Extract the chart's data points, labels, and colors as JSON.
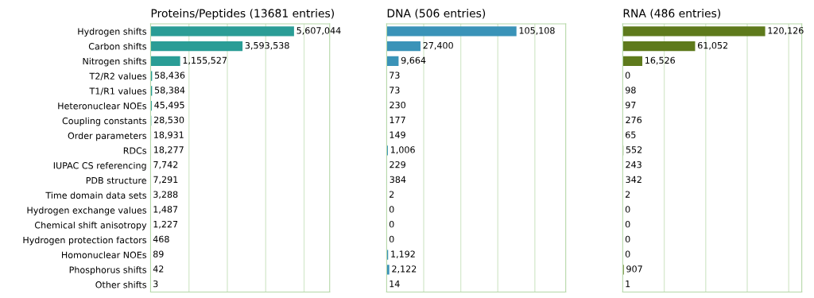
{
  "chart_data": [
    {
      "type": "bar",
      "orientation": "horizontal",
      "title": "Proteins/Peptides (13681 entries)",
      "categories": [
        "Hydrogen shifts",
        "Carbon shifts",
        "Nitrogen shifts",
        "T2/R2 values",
        "T1/R1 values",
        "Heteronuclear NOEs",
        "Coupling constants",
        "Order parameters",
        "RDCs",
        "IUPAC CS referencing",
        "PDB structure",
        "Time domain data sets",
        "Hydrogen exchange values",
        "Chemical shift anisotropy",
        "Hydrogen protection factors",
        "Homonuclear NOEs",
        "Phosphorus shifts",
        "Other shifts"
      ],
      "values": [
        5607044,
        3593538,
        1155527,
        58436,
        58384,
        45495,
        28530,
        18931,
        18277,
        7742,
        7291,
        3288,
        1487,
        1227,
        468,
        89,
        42,
        3
      ],
      "value_labels": [
        "5,607,044",
        "3,593,538",
        "1,155,527",
        "58,436",
        "58,384",
        "45,495",
        "28,530",
        "18,931",
        "18,277",
        "7,742",
        "7,291",
        "3,288",
        "1,487",
        "1,227",
        "468",
        "89",
        "42",
        "3"
      ],
      "color": "#2a9d96",
      "xlim": [
        0,
        7000000
      ],
      "xticks": [
        {
          "value": 1500000,
          "label": null
        },
        {
          "value": 3000000,
          "label": null
        },
        {
          "value": 4500000,
          "label": null
        },
        {
          "value": 6000000,
          "label": null
        }
      ],
      "grid": "x",
      "tick_labels": "y"
    },
    {
      "type": "bar",
      "orientation": "horizontal",
      "title": "DNA (506 entries)",
      "categories": [
        null,
        null,
        null,
        null,
        null,
        null,
        null,
        null,
        null,
        null,
        null,
        null,
        null,
        null,
        null,
        null,
        null,
        null
      ],
      "values": [
        105108,
        27400,
        9664,
        73,
        73,
        230,
        177,
        149,
        1006,
        229,
        384,
        2,
        0,
        0,
        0,
        1192,
        2122,
        14
      ],
      "value_labels": [
        "105,108",
        "27,400",
        "9,664",
        "73",
        "73",
        "230",
        "177",
        "149",
        "1,006",
        "229",
        "384",
        "2",
        "0",
        "0",
        "0",
        "1,192",
        "2,122",
        "14"
      ],
      "color": "#3a93b8",
      "xlim": [
        0,
        145000
      ],
      "xticks": [
        {
          "value": 30000,
          "label": null
        },
        {
          "value": 60000,
          "label": null
        },
        {
          "value": 90000,
          "label": null
        },
        {
          "value": 120000,
          "label": null
        }
      ],
      "grid": "x",
      "tick_labels": false
    },
    {
      "type": "bar",
      "orientation": "horizontal",
      "title": "RNA (486 entries)",
      "categories": [
        null,
        null,
        null,
        null,
        null,
        null,
        null,
        null,
        null,
        null,
        null,
        null,
        null,
        null,
        null,
        null,
        null,
        null
      ],
      "values": [
        120126,
        61052,
        16526,
        0,
        98,
        97,
        276,
        65,
        552,
        243,
        342,
        2,
        0,
        0,
        0,
        0,
        907,
        1
      ],
      "value_labels": [
        "120,126",
        "61,052",
        "16,526",
        "0",
        "98",
        "97",
        "276",
        "65",
        "552",
        "243",
        "342",
        "2",
        "0",
        "0",
        "0",
        "0",
        "907",
        "1"
      ],
      "color": "#5e7a1c",
      "xlim": [
        0,
        151000
      ],
      "xticks": [
        {
          "value": 35000,
          "label": null
        },
        {
          "value": 70000,
          "label": null
        },
        {
          "value": 105000,
          "label": null
        },
        {
          "value": 140000,
          "label": null
        }
      ],
      "grid": "x",
      "tick_labels": false
    }
  ]
}
